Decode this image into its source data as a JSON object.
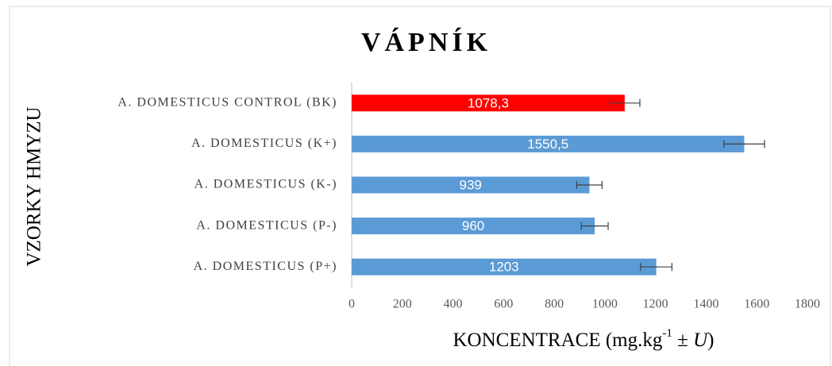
{
  "chart_data": {
    "type": "bar",
    "orientation": "horizontal",
    "title": "VÁPNÍK",
    "y_label": "VZORKY HMYZU",
    "x_label_parts": [
      "KONCENTRACE (mg.kg",
      "-1",
      " ± ",
      "U",
      ")"
    ],
    "categories": [
      "A. DOMESTICUS CONTROL (BK)",
      "A. DOMESTICUS (K+)",
      "A. DOMESTICUS (K-)",
      "A. DOMESTICUS (P-)",
      "A. DOMESTICUS (P+)"
    ],
    "values": [
      1078.3,
      1550.5,
      939,
      960,
      1203
    ],
    "value_labels": [
      "1078,3",
      "1550,5",
      "939",
      "960",
      "1203"
    ],
    "errors": [
      60,
      80,
      50,
      53,
      62
    ],
    "colors": [
      "#ff0000",
      "#5b9bd5",
      "#5b9bd5",
      "#5b9bd5",
      "#5b9bd5"
    ],
    "xlim": [
      0,
      1800
    ],
    "xticks": [
      0,
      200,
      400,
      600,
      800,
      1000,
      1200,
      1400,
      1600,
      1800
    ],
    "grid": false
  }
}
